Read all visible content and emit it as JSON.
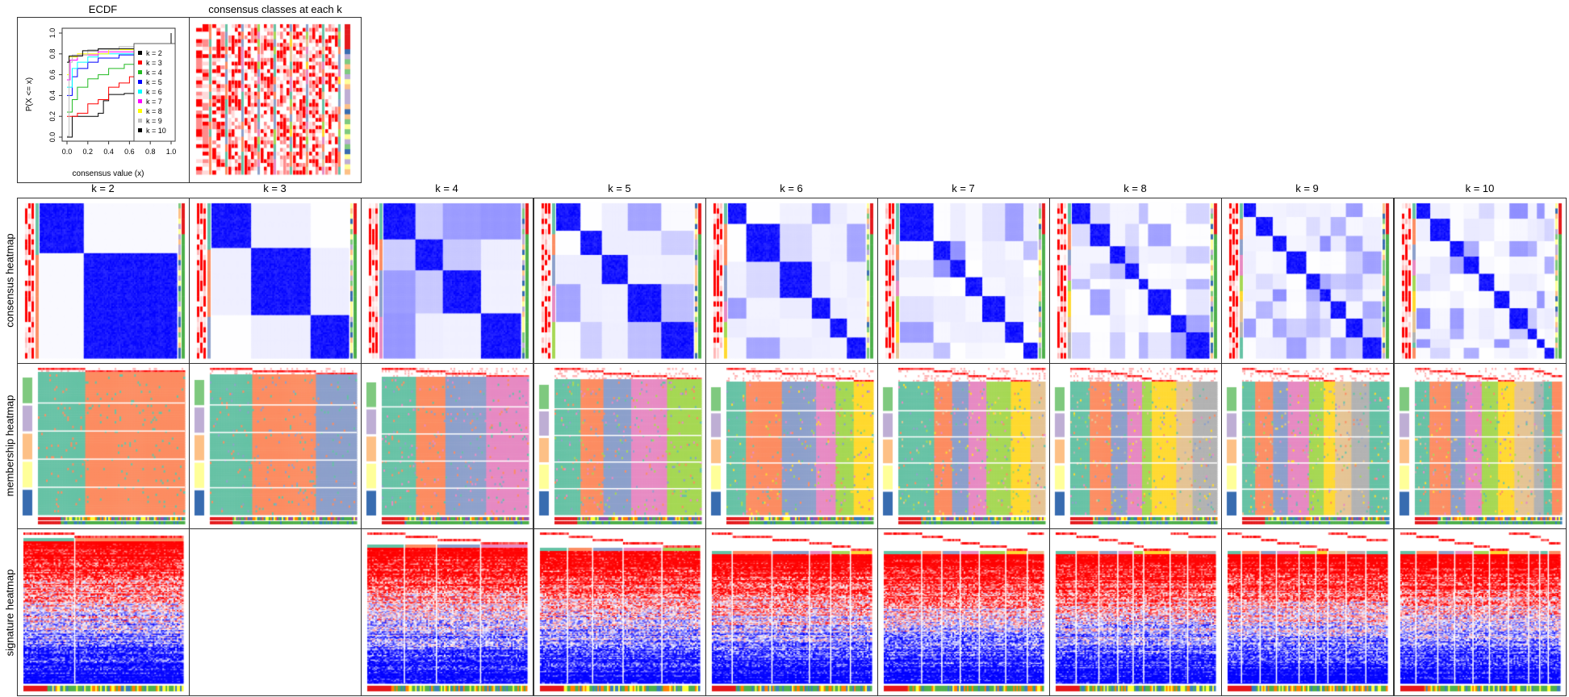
{
  "top": {
    "ecdf_title": "ECDF",
    "classes_title": "consensus classes at each k"
  },
  "row_labels": [
    "consensus heatmap",
    "membership heatmap",
    "signature heatmap"
  ],
  "k_labels": [
    "k = 2",
    "k = 3",
    "k = 4",
    "k = 5",
    "k = 6",
    "k = 7",
    "k = 8",
    "k = 9",
    "k = 10"
  ],
  "colors": {
    "class": [
      "#66C2A5",
      "#FC8D62",
      "#8DA0CB",
      "#E78AC3",
      "#A6D854",
      "#FFD92F",
      "#E5C494",
      "#B3B3B3",
      "#66C2A5",
      "#FC8D62"
    ],
    "group": [
      "#7FC97F",
      "#BEAED4",
      "#FDC086",
      "#FFFF99",
      "#386CB0"
    ],
    "heat_high": "#FF0000",
    "heat_mid": "#FFFFFF",
    "heat_low": "#0000FF",
    "consensus": "#0000FF",
    "frame": "#333333"
  },
  "chart_data": {
    "type": "line",
    "title": "ECDF",
    "xlabel": "consensus value (x)",
    "ylabel": "P(X <= x)",
    "xlim": [
      0,
      1
    ],
    "ylim": [
      0,
      1
    ],
    "xticks": [
      "0.0",
      "0.2",
      "0.4",
      "0.6",
      "0.8",
      "1.0"
    ],
    "yticks": [
      "0.0",
      "0.2",
      "0.4",
      "0.6",
      "0.8",
      "1.0"
    ],
    "legend_position": "right",
    "series": [
      {
        "name": "k = 2",
        "color": "#000000",
        "points": [
          [
            0,
            0
          ],
          [
            0.05,
            0.01
          ],
          [
            0.05,
            0.2
          ],
          [
            0.27,
            0.2
          ],
          [
            0.3,
            0.23
          ],
          [
            0.35,
            0.35
          ],
          [
            0.4,
            0.41
          ],
          [
            0.55,
            0.42
          ],
          [
            0.65,
            0.45
          ],
          [
            0.95,
            0.5
          ],
          [
            1,
            0.52
          ],
          [
            1,
            1
          ]
        ]
      },
      {
        "name": "k = 3",
        "color": "#FF0000",
        "points": [
          [
            0,
            0.2
          ],
          [
            0.1,
            0.23
          ],
          [
            0.2,
            0.32
          ],
          [
            0.3,
            0.36
          ],
          [
            0.4,
            0.48
          ],
          [
            0.5,
            0.52
          ],
          [
            0.6,
            0.58
          ],
          [
            0.65,
            0.65
          ],
          [
            1,
            0.75
          ],
          [
            1,
            1
          ]
        ]
      },
      {
        "name": "k = 4",
        "color": "#22BB22",
        "points": [
          [
            0,
            0.24
          ],
          [
            0.05,
            0.36
          ],
          [
            0.1,
            0.48
          ],
          [
            0.2,
            0.56
          ],
          [
            0.3,
            0.6
          ],
          [
            0.4,
            0.66
          ],
          [
            0.55,
            0.7
          ],
          [
            0.65,
            0.74
          ],
          [
            1,
            0.85
          ],
          [
            1,
            1
          ]
        ]
      },
      {
        "name": "k = 5",
        "color": "#0000FF",
        "points": [
          [
            0,
            0.4
          ],
          [
            0.05,
            0.58
          ],
          [
            0.1,
            0.66
          ],
          [
            0.2,
            0.72
          ],
          [
            0.3,
            0.76
          ],
          [
            0.5,
            0.79
          ],
          [
            0.65,
            0.82
          ],
          [
            1,
            0.88
          ],
          [
            1,
            1
          ]
        ]
      },
      {
        "name": "k = 6",
        "color": "#00FFFF",
        "points": [
          [
            0,
            0.48
          ],
          [
            0.05,
            0.66
          ],
          [
            0.1,
            0.72
          ],
          [
            0.2,
            0.77
          ],
          [
            0.3,
            0.8
          ],
          [
            0.65,
            0.84
          ],
          [
            1,
            0.9
          ],
          [
            1,
            1
          ]
        ]
      },
      {
        "name": "k = 7",
        "color": "#FF00FF",
        "points": [
          [
            0,
            0.55
          ],
          [
            0.03,
            0.74
          ],
          [
            0.1,
            0.79
          ],
          [
            0.3,
            0.82
          ],
          [
            0.65,
            0.86
          ],
          [
            1,
            0.92
          ],
          [
            1,
            1
          ]
        ]
      },
      {
        "name": "k = 8",
        "color": "#FFFF00",
        "points": [
          [
            0,
            0.6
          ],
          [
            0.02,
            0.77
          ],
          [
            0.1,
            0.8
          ],
          [
            0.4,
            0.84
          ],
          [
            0.65,
            0.88
          ],
          [
            1,
            0.95
          ],
          [
            1,
            1
          ]
        ]
      },
      {
        "name": "k = 9",
        "color": "#BEBEBE",
        "points": [
          [
            0,
            0.01
          ],
          [
            0.02,
            0.72
          ],
          [
            0.05,
            0.79
          ],
          [
            0.2,
            0.84
          ],
          [
            0.5,
            0.87
          ],
          [
            1,
            0.97
          ],
          [
            1,
            1
          ]
        ]
      },
      {
        "name": "k = 10",
        "color": "#000000",
        "points": [
          [
            0,
            0.72
          ],
          [
            0.02,
            0.78
          ],
          [
            0.15,
            0.83
          ],
          [
            0.3,
            0.85
          ],
          [
            0.65,
            0.89
          ],
          [
            1,
            0.98
          ],
          [
            1,
            1
          ]
        ]
      }
    ]
  }
}
